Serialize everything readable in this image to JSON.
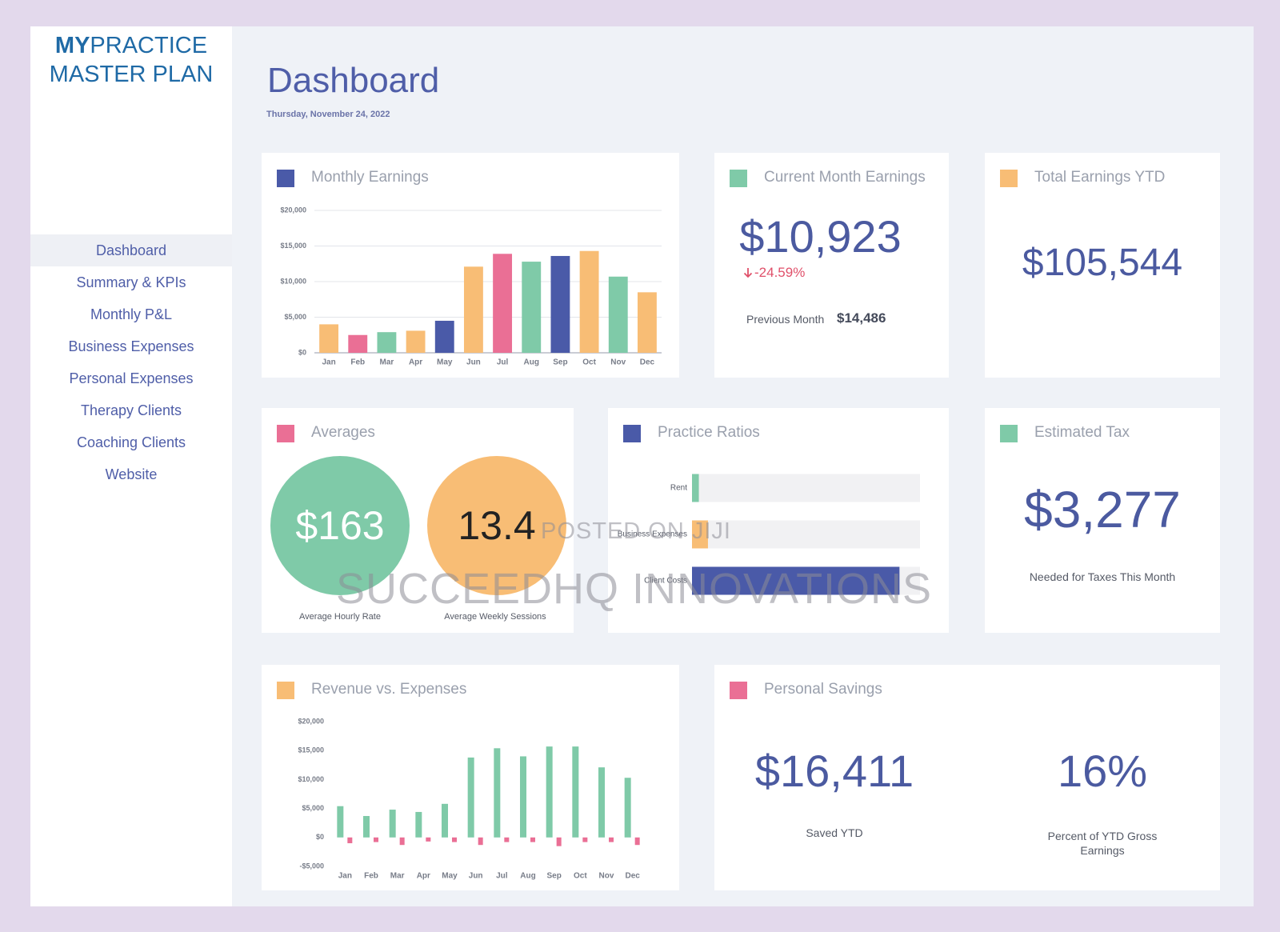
{
  "sidebar": {
    "brand_bold": "MY",
    "brand_rest": "PRACTICE",
    "brand_line2": "MASTER PLAN",
    "nav": [
      "Dashboard",
      "Summary & KPIs",
      "Monthly P&L",
      "Business Expenses",
      "Personal Expenses",
      "Therapy Clients",
      "Coaching Clients",
      "Website"
    ]
  },
  "header": {
    "title": "Dashboard",
    "date": "Thursday, November 24, 2022"
  },
  "current_month": {
    "title": "Current Month Earnings",
    "value": "$10,923",
    "change": "-24.59%",
    "previous_label": "Previous Month",
    "previous_value": "$14,486"
  },
  "total_ytd": {
    "title": "Total Earnings YTD",
    "value": "$105,544"
  },
  "averages": {
    "title": "Averages",
    "hourly_value": "$163",
    "hourly_label": "Average Hourly Rate",
    "sessions_value": "13.4",
    "sessions_label": "Average Weekly Sessions"
  },
  "estimated_tax": {
    "title": "Estimated Tax",
    "value": "$3,277",
    "label": "Needed for Taxes This Month"
  },
  "personal_savings": {
    "title": "Personal Savings",
    "saved_value": "$16,411",
    "saved_label": "Saved YTD",
    "percent_value": "16%",
    "percent_label": "Percent of YTD Gross Earnings"
  },
  "chart_data": [
    {
      "type": "bar",
      "title": "Monthly Earnings",
      "categories": [
        "Jan",
        "Feb",
        "Mar",
        "Apr",
        "May",
        "Jun",
        "Jul",
        "Aug",
        "Sep",
        "Oct",
        "Nov",
        "Dec"
      ],
      "values": [
        4000,
        2500,
        2900,
        3100,
        4500,
        12100,
        13900,
        12800,
        13600,
        14300,
        10700,
        8500
      ],
      "colors": [
        "#f8bd75",
        "#ea6f95",
        "#7fcaa8",
        "#f8bd75",
        "#4a5aa8",
        "#f8bd75",
        "#ea6f95",
        "#7fcaa8",
        "#4a5aa8",
        "#f8bd75",
        "#7fcaa8",
        "#f8bd75"
      ],
      "ylim": [
        0,
        20000
      ],
      "yticks": [
        {
          "value": 0,
          "label": "$0"
        },
        {
          "value": 5000,
          "label": "$5,000"
        },
        {
          "value": 10000,
          "label": "$10,000"
        },
        {
          "value": 15000,
          "label": "$15,000"
        },
        {
          "value": 20000,
          "label": "$20,000"
        }
      ],
      "grid": true
    },
    {
      "type": "bar",
      "title": "Revenue vs. Expenses",
      "categories": [
        "Jan",
        "Feb",
        "Mar",
        "Apr",
        "May",
        "Jun",
        "Jul",
        "Aug",
        "Sep",
        "Oct",
        "Nov",
        "Dec"
      ],
      "series": [
        {
          "color": "#7fcaa8",
          "values": [
            5400,
            3700,
            4800,
            4400,
            5800,
            13800,
            15400,
            14000,
            15700,
            15700,
            12100,
            10300
          ]
        },
        {
          "color": "#ea6f95",
          "values": [
            -1000,
            -800,
            -1300,
            -700,
            -800,
            -1300,
            -800,
            -800,
            -1500,
            -800,
            -800,
            -1300
          ]
        }
      ],
      "ylim": [
        -5000,
        20000
      ],
      "yticks": [
        {
          "value": -5000,
          "label": "-$5,000"
        },
        {
          "value": 0,
          "label": "$0"
        },
        {
          "value": 5000,
          "label": "$5,000"
        },
        {
          "value": 10000,
          "label": "$10,000"
        },
        {
          "value": 15000,
          "label": "$15,000"
        },
        {
          "value": 20000,
          "label": "$20,000"
        }
      ],
      "grid": false
    },
    {
      "type": "hbar",
      "title": "Practice Ratios",
      "categories": [
        "Rent",
        "Business Expenses",
        "Client Costs"
      ],
      "values": [
        3,
        7,
        91
      ],
      "colors": [
        "#7fcaa8",
        "#f8bd75",
        "#4a5aa8"
      ],
      "xlim": [
        0,
        100
      ]
    }
  ],
  "watermark": [
    "POSTED ON JIJI",
    "SUCCEEDHQ INNOVATIONS"
  ]
}
